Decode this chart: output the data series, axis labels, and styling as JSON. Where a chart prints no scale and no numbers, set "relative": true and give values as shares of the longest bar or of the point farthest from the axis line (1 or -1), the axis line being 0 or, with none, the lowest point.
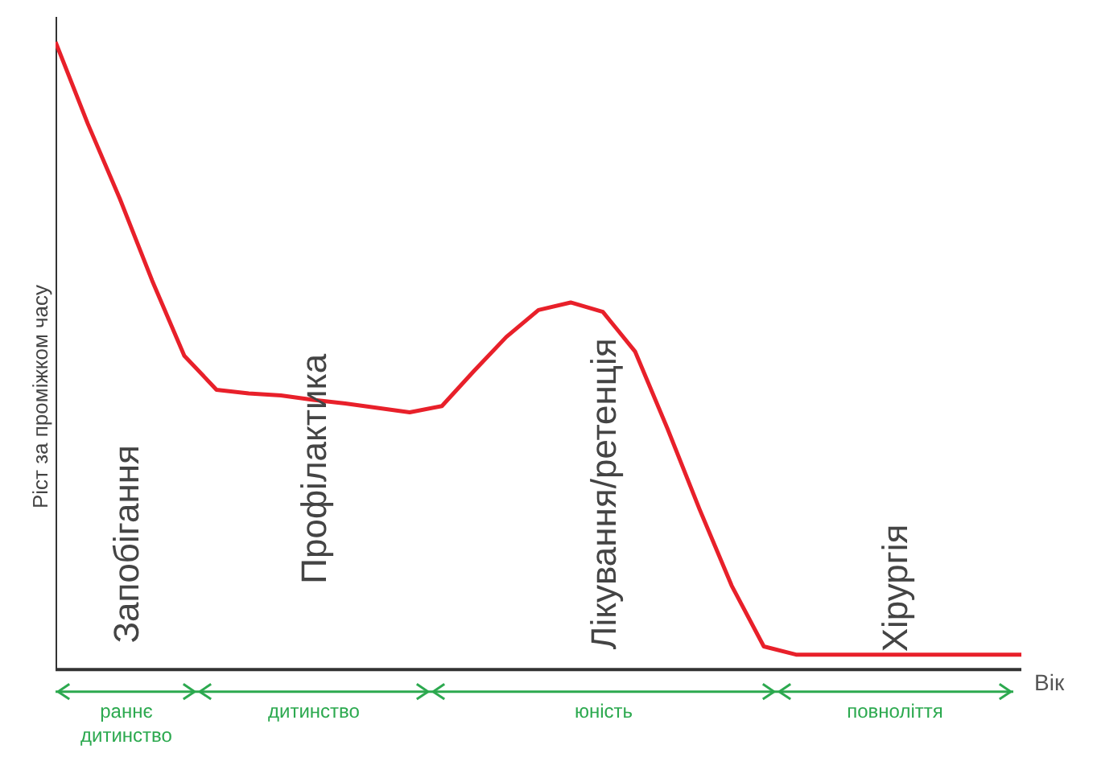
{
  "chart_data": {
    "type": "line",
    "relative": true,
    "xlabel": "Вік",
    "ylabel": "Ріст за проміжком часу",
    "categories": [
      null,
      null,
      null,
      null,
      null,
      null,
      null,
      null,
      null,
      null,
      null,
      null,
      null,
      null,
      null,
      null,
      null,
      null,
      null,
      null,
      null,
      null,
      null,
      null,
      null,
      null,
      null,
      null,
      null,
      null,
      null
    ],
    "series": [
      {
        "color": "#e8202a",
        "values": [
          1.0,
          0.87,
          0.75,
          0.62,
          0.5,
          0.446,
          0.44,
          0.437,
          0.43,
          0.424,
          0.417,
          0.41,
          0.42,
          0.476,
          0.53,
          0.573,
          0.585,
          0.57,
          0.507,
          0.385,
          0.256,
          0.134,
          0.037,
          0.024,
          0.024,
          0.024,
          0.024,
          0.024,
          0.024,
          0.024,
          0.024
        ]
      }
    ],
    "annotations": [
      "Запобігання",
      "Профілактика",
      "Лікування/ретенція",
      "Хірургія",
      "раннє\nдитинство",
      "дитинство",
      "юність",
      "повноліття"
    ]
  }
}
